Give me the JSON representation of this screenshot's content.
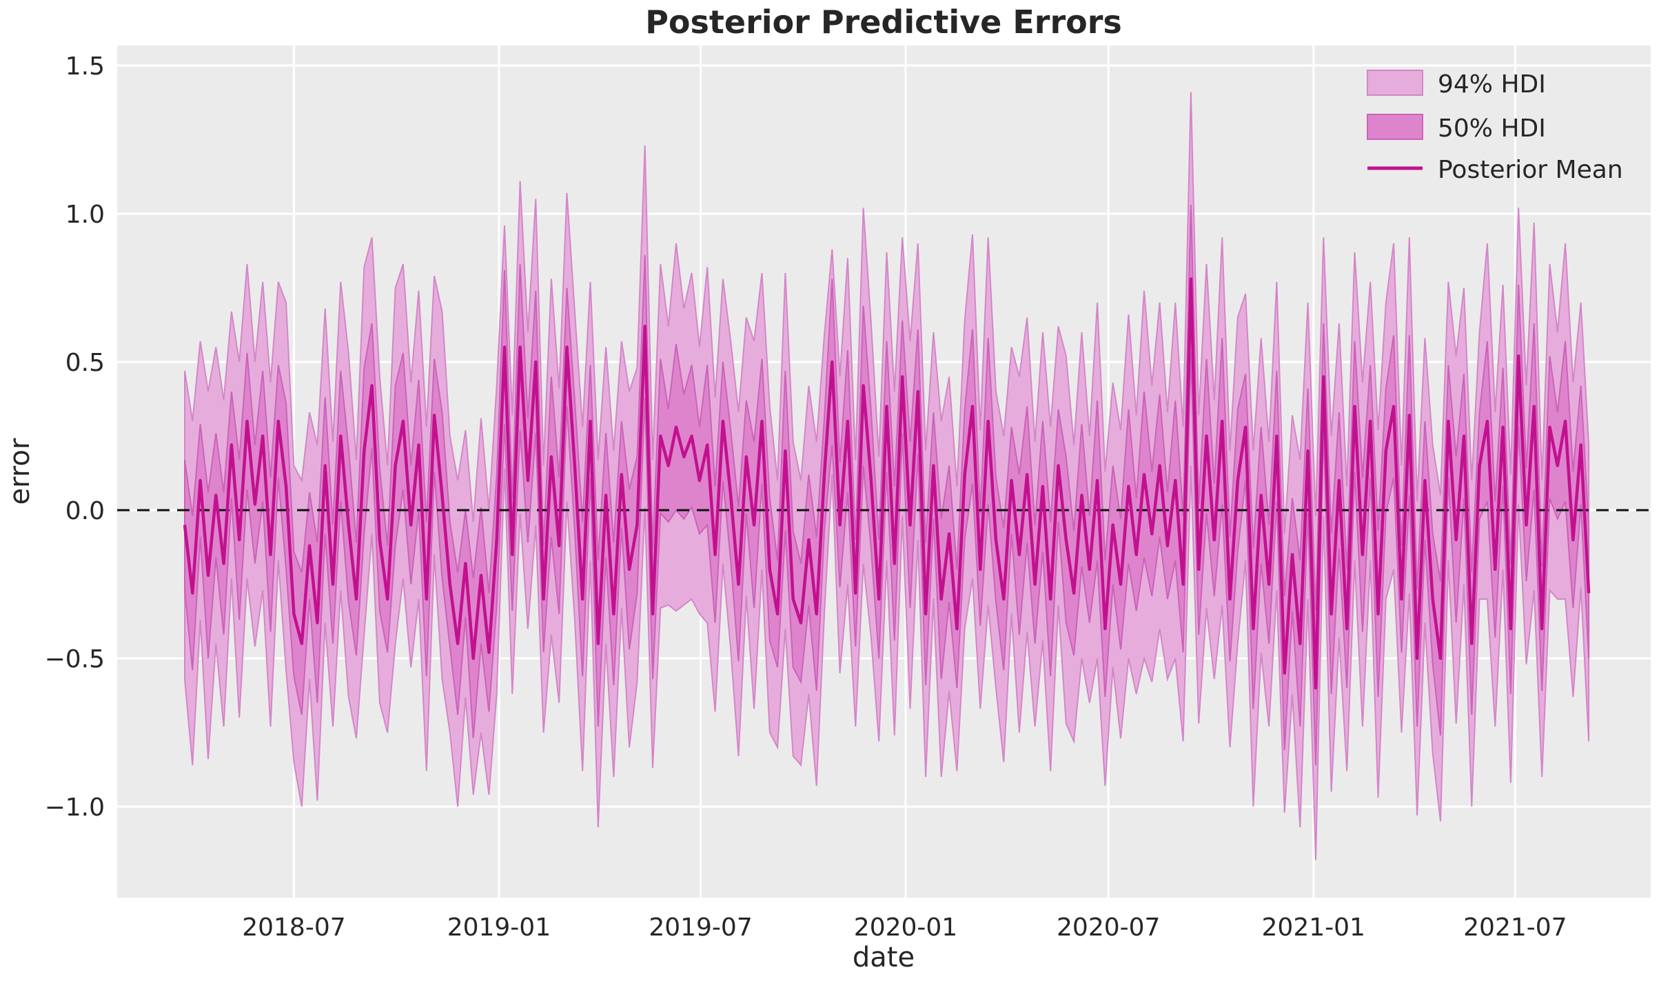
{
  "chart_data": {
    "type": "line",
    "title": "Posterior Predictive Errors",
    "xlabel": "date",
    "ylabel": "error",
    "grid": true,
    "legend_position": "upper right",
    "y_ticks": [
      1.5,
      1.0,
      0.5,
      0.0,
      -0.5,
      -1.0
    ],
    "y_tick_labels": [
      "1.5",
      "1.0",
      "0.5",
      "0.0",
      "−0.5",
      "−1.0"
    ],
    "x_tick_dates": [
      "2018-07-01",
      "2019-01-01",
      "2019-07-01",
      "2020-01-01",
      "2020-07-01",
      "2021-01-01",
      "2021-07-01"
    ],
    "x_tick_labels": [
      "2018-07",
      "2019-01",
      "2019-07",
      "2020-01",
      "2020-07",
      "2021-01",
      "2021-07"
    ],
    "ylim": [
      -1.31,
      1.57
    ],
    "zero_line": 0.0,
    "x_start": "2018-03-25",
    "x_step_days": 7,
    "n_points": 181,
    "legend": [
      {
        "label": "94% HDI",
        "swatch": "patch",
        "fill": "#e6addc",
        "edge": "#d486c8"
      },
      {
        "label": "50% HDI",
        "swatch": "patch",
        "fill": "#de84cd",
        "edge": "#cb63b8"
      },
      {
        "label": "Posterior Mean",
        "swatch": "line",
        "stroke": "#c2118f"
      }
    ],
    "colors": {
      "figure_bg": "#ffffff",
      "axes_bg": "#ebebeb",
      "grid": "#ffffff",
      "hdi94_fill": "#e6addc",
      "hdi94_edge": "#d486c8",
      "hdi50_fill": "#de84cd",
      "hdi50_edge": "#cb63b8",
      "mean_line": "#c2118f",
      "zero_line": "#111111",
      "text": "#262626"
    },
    "series": {
      "posterior_mean": [
        -0.05,
        -0.28,
        0.1,
        -0.22,
        0.05,
        -0.18,
        0.22,
        -0.1,
        0.3,
        0.02,
        0.25,
        -0.15,
        0.3,
        0.08,
        -0.35,
        -0.45,
        -0.12,
        -0.38,
        0.15,
        -0.25,
        0.25,
        -0.05,
        -0.3,
        0.2,
        0.42,
        -0.1,
        -0.3,
        0.15,
        0.3,
        -0.05,
        0.22,
        -0.3,
        0.32,
        0.05,
        -0.25,
        -0.45,
        -0.18,
        -0.5,
        -0.22,
        -0.48,
        -0.1,
        0.55,
        -0.15,
        0.55,
        0.1,
        0.5,
        -0.3,
        0.18,
        -0.12,
        0.55,
        0.15,
        -0.3,
        0.3,
        -0.45,
        0.05,
        -0.35,
        0.12,
        -0.2,
        -0.05,
        0.62,
        -0.35,
        0.25,
        0.15,
        0.28,
        0.18,
        0.25,
        0.1,
        0.22,
        -0.15,
        0.3,
        0.05,
        -0.25,
        0.18,
        -0.05,
        0.3,
        -0.2,
        -0.35,
        0.2,
        -0.3,
        -0.38,
        -0.1,
        -0.35,
        0.12,
        0.5,
        -0.05,
        0.3,
        -0.28,
        0.42,
        0.1,
        -0.3,
        0.35,
        -0.18,
        0.45,
        -0.05,
        0.4,
        -0.35,
        0.15,
        -0.3,
        -0.08,
        -0.4,
        0.12,
        0.35,
        -0.2,
        0.3,
        -0.1,
        -0.3,
        0.1,
        -0.15,
        0.12,
        -0.25,
        0.08,
        -0.3,
        0.15,
        -0.1,
        -0.28,
        0.05,
        -0.2,
        0.1,
        -0.4,
        -0.05,
        -0.25,
        0.08,
        -0.15,
        0.12,
        -0.08,
        0.15,
        -0.12,
        0.1,
        -0.25,
        0.78,
        -0.2,
        0.25,
        -0.1,
        0.3,
        -0.3,
        0.1,
        0.28,
        -0.4,
        0.05,
        -0.25,
        0.25,
        -0.55,
        -0.15,
        -0.45,
        0.2,
        -0.6,
        0.45,
        -0.35,
        0.1,
        -0.4,
        0.35,
        -0.15,
        0.3,
        -0.35,
        0.2,
        0.35,
        -0.3,
        0.32,
        -0.5,
        0.1,
        -0.3,
        -0.5,
        0.3,
        -0.1,
        0.25,
        -0.45,
        0.15,
        0.3,
        -0.2,
        0.28,
        -0.4,
        0.52,
        -0.05,
        0.35,
        -0.4,
        0.28,
        0.15,
        0.3,
        -0.1,
        0.22,
        -0.28
      ],
      "hdi50_halfwidth": [
        0.22,
        0.26,
        0.19,
        0.28,
        0.21,
        0.24,
        0.18,
        0.27,
        0.23,
        0.2,
        0.22,
        0.26,
        0.19,
        0.28,
        0.21,
        0.24,
        0.18,
        0.27,
        0.23,
        0.2,
        0.22,
        0.26,
        0.19,
        0.28,
        0.21,
        0.24,
        0.18,
        0.27,
        0.23,
        0.2,
        0.22,
        0.26,
        0.19,
        0.28,
        0.21,
        0.24,
        0.18,
        0.27,
        0.23,
        0.2,
        0.22,
        0.26,
        0.19,
        0.28,
        0.21,
        0.24,
        0.18,
        0.27,
        0.23,
        0.2,
        0.22,
        0.26,
        0.19,
        0.28,
        0.21,
        0.24,
        0.18,
        0.27,
        0.23,
        0.24,
        0.22,
        0.26,
        0.19,
        0.28,
        0.21,
        0.24,
        0.18,
        0.27,
        0.23,
        0.2,
        0.22,
        0.26,
        0.19,
        0.28,
        0.21,
        0.24,
        0.18,
        0.27,
        0.23,
        0.2,
        0.22,
        0.26,
        0.19,
        0.28,
        0.21,
        0.24,
        0.18,
        0.27,
        0.23,
        0.2,
        0.22,
        0.26,
        0.19,
        0.28,
        0.21,
        0.24,
        0.18,
        0.27,
        0.23,
        0.2,
        0.22,
        0.26,
        0.19,
        0.28,
        0.21,
        0.24,
        0.18,
        0.27,
        0.23,
        0.2,
        0.22,
        0.26,
        0.19,
        0.28,
        0.21,
        0.24,
        0.18,
        0.27,
        0.23,
        0.2,
        0.22,
        0.26,
        0.19,
        0.28,
        0.21,
        0.24,
        0.18,
        0.27,
        0.23,
        0.25,
        0.22,
        0.26,
        0.19,
        0.28,
        0.21,
        0.24,
        0.18,
        0.27,
        0.23,
        0.2,
        0.22,
        0.26,
        0.19,
        0.28,
        0.21,
        0.26,
        0.18,
        0.27,
        0.23,
        0.2,
        0.22,
        0.26,
        0.19,
        0.28,
        0.21,
        0.24,
        0.18,
        0.27,
        0.23,
        0.2,
        0.22,
        0.26,
        0.19,
        0.28,
        0.21,
        0.24,
        0.18,
        0.27,
        0.23,
        0.2,
        0.22,
        0.24,
        0.19,
        0.28,
        0.21,
        0.24,
        0.18,
        0.27,
        0.23,
        0.2,
        0.22
      ],
      "hdi94_halfwidth": [
        0.52,
        0.58,
        0.47,
        0.62,
        0.5,
        0.55,
        0.45,
        0.6,
        0.53,
        0.48,
        0.52,
        0.58,
        0.47,
        0.62,
        0.5,
        0.55,
        0.45,
        0.6,
        0.53,
        0.48,
        0.52,
        0.58,
        0.47,
        0.62,
        0.5,
        0.55,
        0.45,
        0.6,
        0.53,
        0.48,
        0.52,
        0.58,
        0.47,
        0.62,
        0.5,
        0.55,
        0.45,
        0.46,
        0.53,
        0.48,
        0.52,
        0.41,
        0.47,
        0.56,
        0.5,
        0.55,
        0.45,
        0.6,
        0.53,
        0.52,
        0.52,
        0.58,
        0.47,
        0.62,
        0.5,
        0.55,
        0.45,
        0.6,
        0.53,
        0.61,
        0.52,
        0.58,
        0.47,
        0.62,
        0.5,
        0.55,
        0.45,
        0.6,
        0.53,
        0.48,
        0.52,
        0.58,
        0.47,
        0.62,
        0.5,
        0.55,
        0.45,
        0.6,
        0.53,
        0.48,
        0.52,
        0.58,
        0.47,
        0.38,
        0.5,
        0.55,
        0.45,
        0.6,
        0.53,
        0.48,
        0.52,
        0.58,
        0.47,
        0.62,
        0.5,
        0.55,
        0.45,
        0.6,
        0.53,
        0.48,
        0.52,
        0.58,
        0.47,
        0.62,
        0.5,
        0.55,
        0.45,
        0.6,
        0.53,
        0.48,
        0.52,
        0.58,
        0.47,
        0.62,
        0.5,
        0.55,
        0.45,
        0.6,
        0.53,
        0.48,
        0.52,
        0.58,
        0.47,
        0.62,
        0.5,
        0.55,
        0.45,
        0.6,
        0.53,
        0.63,
        0.52,
        0.58,
        0.47,
        0.62,
        0.5,
        0.55,
        0.45,
        0.6,
        0.53,
        0.48,
        0.52,
        0.47,
        0.47,
        0.62,
        0.5,
        0.58,
        0.47,
        0.6,
        0.53,
        0.48,
        0.52,
        0.58,
        0.47,
        0.62,
        0.5,
        0.55,
        0.45,
        0.6,
        0.53,
        0.48,
        0.52,
        0.55,
        0.47,
        0.62,
        0.5,
        0.55,
        0.45,
        0.6,
        0.53,
        0.48,
        0.52,
        0.5,
        0.47,
        0.62,
        0.5,
        0.55,
        0.45,
        0.6,
        0.53,
        0.48,
        0.5
      ]
    }
  }
}
